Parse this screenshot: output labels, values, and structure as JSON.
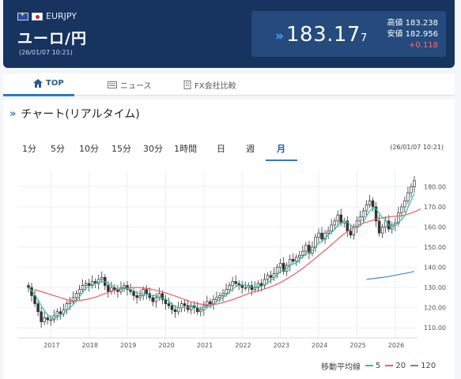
{
  "header": {
    "pair_code": "EURJPY",
    "title": "ユーロ/円",
    "timestamp": "(26/01/07 10:21)",
    "price_main": "183.17",
    "price_small": "7",
    "high_label": "高値",
    "high_value": "183.238",
    "low_label": "安値",
    "low_value": "182.956",
    "change": "+0.118",
    "colors": {
      "header_bg": "#16345f",
      "price_box": "#244b7c",
      "change": "#ff6b6b",
      "down_arrow": "#45a6ff"
    }
  },
  "tabs": [
    {
      "label": "TOP",
      "icon": "home-icon"
    },
    {
      "label": "ニュース",
      "icon": "news-icon"
    },
    {
      "label": "FX会社比較",
      "icon": "building-icon"
    }
  ],
  "section": {
    "title": "チャート(リアルタイム)",
    "periods": [
      "1分",
      "5分",
      "10分",
      "15分",
      "30分",
      "1時間",
      "日",
      "週",
      "月"
    ],
    "active_period": "月",
    "chart_time": "(26/01/07 10:21)"
  },
  "legend": {
    "label": "移動平均線",
    "items": [
      {
        "name": "5",
        "color": "#2ebfa0"
      },
      {
        "name": "20",
        "color": "#ec5d5d"
      },
      {
        "name": "120",
        "color": "#4a8fc8"
      }
    ]
  },
  "chart_data": {
    "type": "candlestick",
    "x_tick_labels": [
      "2017",
      "2018",
      "2019",
      "2020",
      "2021",
      "2022",
      "2023",
      "2024",
      "2025",
      "2026"
    ],
    "y_tick_labels": [
      "110.00",
      "120.00",
      "130.00",
      "140.00",
      "150.00",
      "160.00",
      "170.00",
      "180.00"
    ],
    "ylim": [
      105,
      188
    ],
    "grid": true,
    "closes": [
      130,
      126,
      122,
      118,
      113,
      115,
      114,
      114,
      116,
      118,
      117,
      119,
      122,
      123,
      125,
      127,
      129,
      131,
      132,
      131,
      133,
      132,
      134,
      135,
      131,
      128,
      130,
      129,
      128,
      130,
      131,
      129,
      128,
      126,
      125,
      126,
      129,
      127,
      125,
      123,
      125,
      127,
      124,
      122,
      121,
      119,
      118,
      120,
      122,
      121,
      119,
      121,
      120,
      118,
      119,
      121,
      123,
      122,
      124,
      125,
      126,
      127,
      129,
      131,
      133,
      132,
      131,
      130,
      130,
      131,
      129,
      130,
      132,
      131,
      134,
      136,
      135,
      137,
      140,
      142,
      138,
      141,
      144,
      143,
      145,
      146,
      148,
      151,
      147,
      150,
      155,
      157,
      154,
      157,
      158,
      161,
      163,
      166,
      162,
      163,
      158,
      156,
      160,
      163,
      165,
      168,
      171,
      173,
      170,
      163,
      157,
      160,
      163,
      159,
      161,
      162,
      167,
      170,
      173,
      177,
      180,
      183
    ],
    "sma5": [
      130,
      128.5,
      126.5,
      124,
      121,
      118.5,
      116.5,
      115,
      114.5,
      115.5,
      116,
      117,
      118.5,
      120,
      121.5,
      123.5,
      125.5,
      127.5,
      129.5,
      130.5,
      131.5,
      132,
      132.5,
      133,
      132.8,
      131.8,
      131.3,
      130.2,
      129.2,
      129,
      129.6,
      129.4,
      129,
      128.4,
      127.4,
      126.8,
      126.8,
      126.6,
      126.4,
      126,
      126,
      125.2,
      124.6,
      124.2,
      123.4,
      121.6,
      120.8,
      120,
      120,
      120,
      120.2,
      120.2,
      120.6,
      120,
      119.8,
      120,
      120.6,
      120.6,
      121.6,
      123,
      124,
      125,
      126.2,
      127.6,
      129.2,
      130.4,
      131.2,
      131.4,
      131.2,
      130.8,
      130.4,
      130.2,
      130.4,
      130.6,
      131.2,
      132.4,
      133.6,
      134.6,
      136.4,
      138,
      138.4,
      139.6,
      141,
      141.6,
      142.2,
      143.8,
      145.2,
      146.6,
      147.4,
      148.4,
      150.2,
      152,
      152.6,
      154.6,
      156.2,
      157.4,
      158.6,
      161,
      162,
      163,
      162.4,
      161,
      160,
      159.6,
      160.4,
      162.4,
      165.4,
      168,
      169.4,
      169,
      166.8,
      164.6,
      163.6,
      160.8,
      160,
      161,
      162.4,
      163.8,
      165.6,
      169.8,
      173.4,
      176.6
    ],
    "sma20": [
      129,
      128.5,
      128,
      127.5,
      127,
      126.5,
      126,
      125.5,
      125,
      124.5,
      124,
      123.8,
      123.5,
      123.5,
      123.6,
      123.8,
      124,
      124.4,
      124.8,
      125.2,
      125.8,
      126.4,
      127,
      127.6,
      128.2,
      128.6,
      129,
      129.3,
      129.6,
      129.8,
      130,
      130,
      130,
      129.9,
      129.7,
      129.5,
      129.3,
      129,
      128.6,
      128.2,
      127.8,
      127.3,
      126.8,
      126.3,
      125.8,
      125.2,
      124.6,
      124,
      123.4,
      122.9,
      122.4,
      122,
      121.8,
      121.6,
      121.5,
      121.5,
      121.6,
      121.8,
      122.1,
      122.5,
      123,
      123.5,
      124,
      124.6,
      125.2,
      125.8,
      126.4,
      127,
      127.6,
      128,
      128.4,
      128.8,
      129.3,
      129.8,
      130.4,
      131,
      131.7,
      132.5,
      133.4,
      134.3,
      135.2,
      136.2,
      137.3,
      138.4,
      139.5,
      140.7,
      142,
      143.3,
      144.6,
      145.9,
      147.2,
      148.5,
      149.8,
      151.2,
      152.6,
      154,
      155.3,
      156.6,
      157.8,
      158.9,
      159.8,
      160.6,
      161.3,
      161.9,
      162.4,
      162.9,
      163.4,
      163.9,
      164.3,
      164.6,
      164.8,
      165,
      165.2,
      165.3,
      165.5,
      165.7,
      166,
      166.4,
      166.9,
      167.5,
      168.2,
      169
    ],
    "sma120": [
      134,
      134.2,
      134.4,
      134.6,
      134.8,
      135,
      135.2,
      135.5,
      135.8,
      136.1,
      136.4,
      136.7,
      137,
      137.3,
      137.6,
      138
    ]
  }
}
